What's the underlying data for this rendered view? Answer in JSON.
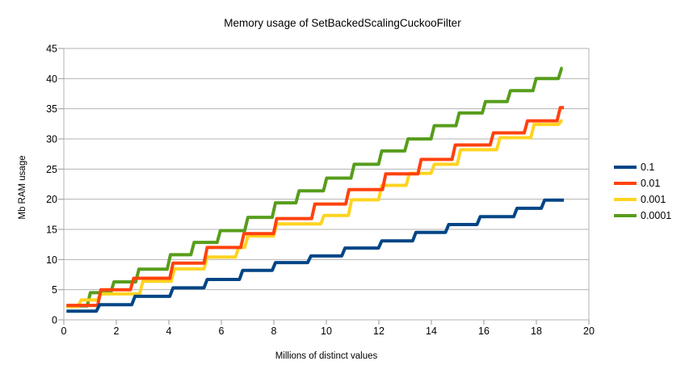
{
  "title": "Memory usage of SetBackedScalingCuckooFilter",
  "colors": {
    "background": "#FFFFFF",
    "grid": "#B3B3B3",
    "tick": "#999999",
    "text": "#000000"
  },
  "legend": {
    "position": "right",
    "entries": [
      "0.1",
      "0.01",
      "0.001",
      "0.0001"
    ]
  },
  "chart_data": {
    "type": "line",
    "subtype": "step",
    "title": "Memory usage of SetBackedScalingCuckooFilter",
    "xlabel": "Millions of distinct values",
    "ylabel": "Mb RAM usage",
    "xlim": [
      0,
      20
    ],
    "ylim": [
      0,
      45
    ],
    "x_ticks": [
      0,
      2,
      4,
      6,
      8,
      10,
      12,
      14,
      16,
      18,
      20
    ],
    "y_ticks": [
      0,
      5,
      10,
      15,
      20,
      25,
      30,
      35,
      40,
      45
    ],
    "grid": true,
    "legend_position": "right",
    "series": [
      {
        "name": "0.1",
        "color": "#004586",
        "end_x": 19.05,
        "points": [
          [
            0.1,
            1.45
          ],
          [
            1.3,
            2.5
          ],
          [
            2.65,
            3.9
          ],
          [
            4.1,
            5.3
          ],
          [
            5.4,
            6.7
          ],
          [
            6.75,
            8.2
          ],
          [
            8.0,
            9.5
          ],
          [
            9.35,
            10.6
          ],
          [
            10.65,
            11.9
          ],
          [
            12.05,
            13.1
          ],
          [
            13.35,
            14.5
          ],
          [
            14.6,
            15.8
          ],
          [
            15.8,
            17.1
          ],
          [
            17.2,
            18.5
          ],
          [
            18.25,
            19.85
          ]
        ]
      },
      {
        "name": "0.01",
        "color": "#FF420E",
        "end_x": 19.05,
        "points": [
          [
            0.1,
            2.4
          ],
          [
            1.35,
            5.0
          ],
          [
            2.6,
            6.9
          ],
          [
            4.1,
            9.4
          ],
          [
            5.4,
            12.0
          ],
          [
            6.8,
            14.3
          ],
          [
            8.05,
            16.8
          ],
          [
            9.5,
            19.2
          ],
          [
            10.8,
            21.6
          ],
          [
            12.2,
            24.2
          ],
          [
            13.55,
            26.6
          ],
          [
            14.85,
            29.0
          ],
          [
            16.3,
            31.0
          ],
          [
            17.6,
            33.0
          ],
          [
            18.85,
            35.2
          ]
        ]
      },
      {
        "name": "0.001",
        "color": "#FFD320",
        "end_x": 19.0,
        "points": [
          [
            0.1,
            2.2
          ],
          [
            0.6,
            3.3
          ],
          [
            1.35,
            4.3
          ],
          [
            2.95,
            6.4
          ],
          [
            4.15,
            8.45
          ],
          [
            5.4,
            10.4
          ],
          [
            6.6,
            12.0
          ],
          [
            6.95,
            13.9
          ],
          [
            8.05,
            15.9
          ],
          [
            9.85,
            17.3
          ],
          [
            10.9,
            19.9
          ],
          [
            12.05,
            22.3
          ],
          [
            13.1,
            24.3
          ],
          [
            14.05,
            25.8
          ],
          [
            15.05,
            28.2
          ],
          [
            16.55,
            30.2
          ],
          [
            17.85,
            32.4
          ],
          [
            18.9,
            33.0
          ]
        ]
      },
      {
        "name": "0.0001",
        "color": "#579D1C",
        "end_x": 19.0,
        "points": [
          [
            0.1,
            2.3
          ],
          [
            0.95,
            4.5
          ],
          [
            1.85,
            6.3
          ],
          [
            2.8,
            8.4
          ],
          [
            4.0,
            10.8
          ],
          [
            4.9,
            12.85
          ],
          [
            5.9,
            14.8
          ],
          [
            6.95,
            17.0
          ],
          [
            8.0,
            19.4
          ],
          [
            8.9,
            21.4
          ],
          [
            9.95,
            23.5
          ],
          [
            11.0,
            25.8
          ],
          [
            12.05,
            28.0
          ],
          [
            13.05,
            30.0
          ],
          [
            14.05,
            32.2
          ],
          [
            15.0,
            34.3
          ],
          [
            16.0,
            36.2
          ],
          [
            16.95,
            38.0
          ],
          [
            17.93,
            40.0
          ],
          [
            18.9,
            41.7
          ]
        ]
      }
    ]
  }
}
